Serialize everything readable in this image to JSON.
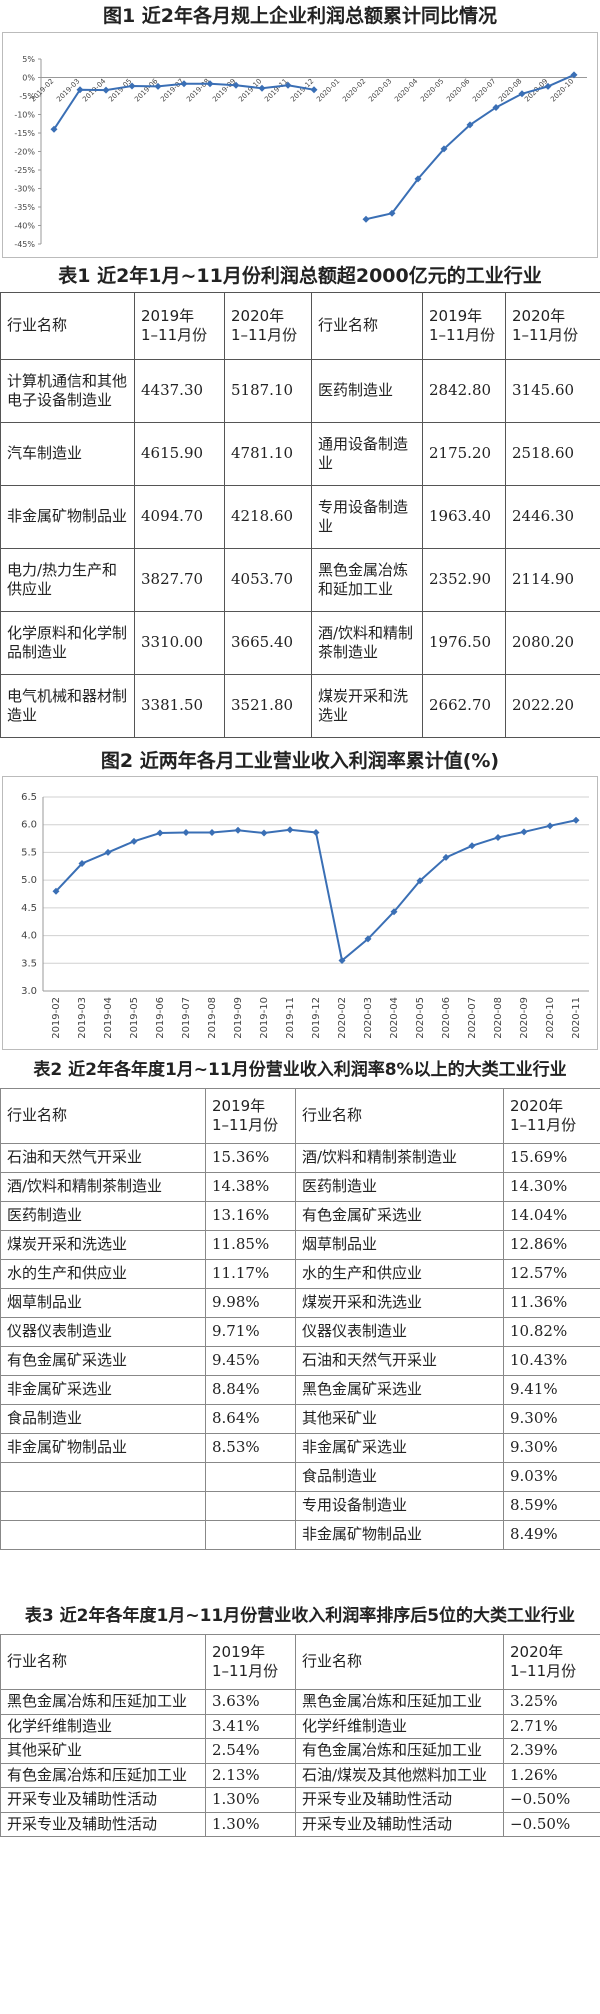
{
  "chart_data": [
    {
      "type": "line",
      "title": "图1 近2年各月规上企业利润总额累计同比情况",
      "categories": [
        "2019-02",
        "2019-03",
        "2019-04",
        "2019-05",
        "2019-06",
        "2019-07",
        "2019-08",
        "2019-09",
        "2019-10",
        "2019-11",
        "2019-12",
        "2020-01",
        "2020-02",
        "2020-03",
        "2020-04",
        "2020-05",
        "2020-06",
        "2020-07",
        "2020-08",
        "2020-09",
        "2020-10"
      ],
      "values": [
        -14.0,
        -3.3,
        -3.4,
        -2.3,
        -2.4,
        -1.7,
        -1.7,
        -2.1,
        -2.9,
        -2.1,
        -3.3,
        null,
        -38.3,
        -36.7,
        -27.4,
        -19.3,
        -12.8,
        -8.1,
        -4.4,
        -2.4,
        0.7
      ],
      "color": "#3a6fb5",
      "ylim": [
        -45,
        5
      ],
      "yticks": [
        {
          "value": 5,
          "label": "5%"
        },
        {
          "value": 0,
          "label": "0%"
        },
        {
          "value": -5,
          "label": "-5%"
        },
        {
          "value": -10,
          "label": "-10%"
        },
        {
          "value": -15,
          "label": "-15%"
        },
        {
          "value": -20,
          "label": "-20%"
        },
        {
          "value": -25,
          "label": "-25%"
        },
        {
          "value": -30,
          "label": "-30%"
        },
        {
          "value": -35,
          "label": "-35%"
        },
        {
          "value": -40,
          "label": "-40%"
        },
        {
          "value": -45,
          "label": "-45%"
        }
      ],
      "grid": false
    },
    {
      "type": "line",
      "title": "图2 近两年各月工业营业收入利润率累计值(%)",
      "categories": [
        "2019-02",
        "2019-03",
        "2019-04",
        "2019-05",
        "2019-06",
        "2019-07",
        "2019-08",
        "2019-09",
        "2019-10",
        "2019-11",
        "2019-12",
        "2020-02",
        "2020-03",
        "2020-04",
        "2020-05",
        "2020-06",
        "2020-07",
        "2020-08",
        "2020-09",
        "2020-10",
        "2020-11"
      ],
      "values": [
        4.8,
        5.3,
        5.5,
        5.7,
        5.85,
        5.86,
        5.86,
        5.9,
        5.85,
        5.91,
        5.86,
        3.55,
        3.94,
        4.43,
        4.99,
        5.41,
        5.62,
        5.77,
        5.87,
        5.98,
        6.08
      ],
      "color": "#3a6fb5",
      "ylim": [
        3,
        6.5
      ],
      "yticks": [
        {
          "value": 3,
          "label": "3.0"
        },
        {
          "value": 3.5,
          "label": "3.5"
        },
        {
          "value": 4,
          "label": "4.0"
        },
        {
          "value": 4.5,
          "label": "4.5"
        },
        {
          "value": 5,
          "label": "5.0"
        },
        {
          "value": 5.5,
          "label": "5.5"
        },
        {
          "value": 6,
          "label": "6.0"
        },
        {
          "value": 6.5,
          "label": "6.5"
        }
      ],
      "grid": true
    }
  ],
  "tables": [
    {
      "title": "表1 近2年1月~11月份利润总额超2000亿元的工业行业",
      "header": [
        "行业名称",
        "2019年\n1–11月份",
        "2020年\n1–11月份",
        "行业名称",
        "2019年\n1–11月份",
        "2020年\n1–11月份"
      ],
      "rows": [
        [
          "计算机通信和其他电子设备制造业",
          "4437.30",
          "5187.10",
          "医药制造业",
          "2842.80",
          "3145.60"
        ],
        [
          "汽车制造业",
          "4615.90",
          "4781.10",
          "通用设备制造业",
          "2175.20",
          "2518.60"
        ],
        [
          "非金属矿物制品业",
          "4094.70",
          "4218.60",
          "专用设备制造业",
          "1963.40",
          "2446.30"
        ],
        [
          "电力/热力生产和供应业",
          "3827.70",
          "4053.70",
          "黑色金属冶炼和延加工业",
          "2352.90",
          "2114.90"
        ],
        [
          "化学原料和化学制品制造业",
          "3310.00",
          "3665.40",
          "酒/饮料和精制茶制造业",
          "1976.50",
          "2080.20"
        ],
        [
          "电气机械和器材制造业",
          "3381.50",
          "3521.80",
          "煤炭开采和洗选业",
          "2662.70",
          "2022.20"
        ]
      ]
    },
    {
      "title": "表2 近2年各年度1月~11月份营业收入利润率8%以上的大类工业行业",
      "header": [
        "行业名称",
        "2019年\n1–11月份",
        "行业名称",
        "2020年\n1–11月份"
      ],
      "rows": [
        [
          "石油和天然气开采业",
          "15.36%",
          "酒/饮料和精制茶制造业",
          "15.69%"
        ],
        [
          "酒/饮料和精制茶制造业",
          "14.38%",
          "医药制造业",
          "14.30%"
        ],
        [
          "医药制造业",
          "13.16%",
          "有色金属矿采选业",
          "14.04%"
        ],
        [
          "煤炭开采和洗选业",
          "11.85%",
          "烟草制品业",
          "12.86%"
        ],
        [
          "水的生产和供应业",
          "11.17%",
          "水的生产和供应业",
          "12.57%"
        ],
        [
          "烟草制品业",
          "9.98%",
          "煤炭开采和洗选业",
          "11.36%"
        ],
        [
          "仪器仪表制造业",
          "9.71%",
          "仪器仪表制造业",
          "10.82%"
        ],
        [
          "有色金属矿采选业",
          "9.45%",
          "石油和天然气开采业",
          "10.43%"
        ],
        [
          "非金属矿采选业",
          "8.84%",
          "黑色金属矿采选业",
          "9.41%"
        ],
        [
          "食品制造业",
          "8.64%",
          "其他采矿业",
          "9.30%"
        ],
        [
          "非金属矿物制品业",
          "8.53%",
          "非金属矿采选业",
          "9.30%"
        ],
        [
          null,
          null,
          "食品制造业",
          "9.03%"
        ],
        [
          null,
          null,
          "专用设备制造业",
          "8.59%"
        ],
        [
          null,
          null,
          "非金属矿物制品业",
          "8.49%"
        ]
      ]
    },
    {
      "title": "表3 近2年各年度1月~11月份营业收入利润率排序后5位的大类工业行业",
      "header": [
        "行业名称",
        "2019年\n1–11月份",
        "行业名称",
        "2020年\n1–11月份"
      ],
      "rows": [
        [
          "黑色金属冶炼和压延加工业",
          "3.63%",
          "黑色金属冶炼和压延加工业",
          "3.25%"
        ],
        [
          "化学纤维制造业",
          "3.41%",
          "化学纤维制造业",
          "2.71%"
        ],
        [
          "其他采矿业",
          "2.54%",
          "有色金属冶炼和压延加工业",
          "2.39%"
        ],
        [
          "有色金属冶炼和压延加工业",
          "2.13%",
          "石油/煤炭及其他燃料加工业",
          "1.26%"
        ],
        [
          "开采专业及辅助性活动",
          "1.30%",
          "开采专业及辅助性活动",
          "−0.50%"
        ],
        [
          "开采专业及辅助性活动",
          "1.30%",
          "开采专业及辅助性活动",
          "−0.50%"
        ]
      ]
    }
  ]
}
